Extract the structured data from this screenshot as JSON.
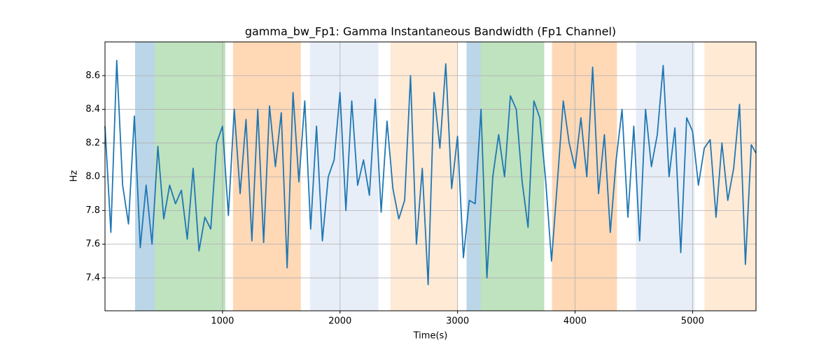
{
  "chart_data": {
    "type": "line",
    "title": "gamma_bw_Fp1: Gamma Instantaneous Bandwidth (Fp1 Channel)",
    "x_label": "Time(s)",
    "y_label": "Hz",
    "xlim": [
      0,
      5540
    ],
    "ylim": [
      7.205,
      8.8
    ],
    "xticks": [
      1000,
      2000,
      3000,
      4000,
      5000
    ],
    "yticks": [
      7.4,
      7.6,
      7.8,
      {
        "value": 8,
        "label": "8.0"
      },
      8.2,
      8.4,
      8.6
    ],
    "grid": true,
    "regions": [
      {
        "start": 256,
        "end": 423,
        "color": "#1f77b4",
        "opacity": 0.3
      },
      {
        "start": 423,
        "end": 1024,
        "color": "#2ca02c",
        "opacity": 0.3
      },
      {
        "start": 1089,
        "end": 1667,
        "color": "#ff7f0e",
        "opacity": 0.3
      },
      {
        "start": 1744,
        "end": 2327,
        "color": "#aec7e8",
        "opacity": 0.3
      },
      {
        "start": 2429,
        "end": 3000,
        "color": "#ffbb78",
        "opacity": 0.3
      },
      {
        "start": 3077,
        "end": 3196,
        "color": "#1f77b4",
        "opacity": 0.3
      },
      {
        "start": 3196,
        "end": 3738,
        "color": "#2ca02c",
        "opacity": 0.3
      },
      {
        "start": 3804,
        "end": 4357,
        "color": "#ff7f0e",
        "opacity": 0.3
      },
      {
        "start": 4518,
        "end": 5018,
        "color": "#aec7e8",
        "opacity": 0.3
      },
      {
        "start": 5101,
        "end": 5540,
        "color": "#ffbb78",
        "opacity": 0.3
      }
    ],
    "series": [
      {
        "color": "#1f77b4",
        "x": [
          0,
          50,
          100,
          150,
          200,
          250,
          300,
          350,
          400,
          450,
          500,
          550,
          600,
          650,
          700,
          750,
          800,
          850,
          900,
          950,
          1000,
          1050,
          1100,
          1150,
          1200,
          1250,
          1300,
          1350,
          1400,
          1450,
          1500,
          1550,
          1600,
          1650,
          1700,
          1750,
          1800,
          1850,
          1900,
          1950,
          2000,
          2050,
          2100,
          2150,
          2200,
          2250,
          2300,
          2350,
          2400,
          2450,
          2500,
          2550,
          2600,
          2650,
          2700,
          2750,
          2800,
          2850,
          2900,
          2950,
          3000,
          3050,
          3100,
          3150,
          3200,
          3250,
          3300,
          3350,
          3400,
          3450,
          3500,
          3550,
          3600,
          3650,
          3700,
          3750,
          3800,
          3850,
          3900,
          3950,
          4000,
          4050,
          4100,
          4150,
          4200,
          4250,
          4300,
          4350,
          4400,
          4450,
          4500,
          4550,
          4600,
          4650,
          4700,
          4750,
          4800,
          4850,
          4900,
          4950,
          5000,
          5050,
          5100,
          5150,
          5200,
          5250,
          5300,
          5350,
          5400,
          5450,
          5500,
          5540
        ],
        "values": [
          8.3,
          7.67,
          8.69,
          7.95,
          7.72,
          8.36,
          7.58,
          7.95,
          7.6,
          8.18,
          7.75,
          7.95,
          7.84,
          7.92,
          7.63,
          8.05,
          7.56,
          7.76,
          7.69,
          8.2,
          8.3,
          7.77,
          8.4,
          7.9,
          8.34,
          7.62,
          8.4,
          7.61,
          8.42,
          8.06,
          8.38,
          7.46,
          8.5,
          7.97,
          8.45,
          7.69,
          8.3,
          7.62,
          8.0,
          8.1,
          8.5,
          7.8,
          8.45,
          7.95,
          8.1,
          7.89,
          8.46,
          7.79,
          8.33,
          7.93,
          7.75,
          7.86,
          8.6,
          7.6,
          8.05,
          7.36,
          8.5,
          8.17,
          8.67,
          7.93,
          8.24,
          7.52,
          7.86,
          7.84,
          8.4,
          7.4,
          8.0,
          8.25,
          8.0,
          8.48,
          8.4,
          7.97,
          7.7,
          8.45,
          8.35,
          7.98,
          7.5,
          7.97,
          8.45,
          8.2,
          8.05,
          8.35,
          8.0,
          8.65,
          7.9,
          8.25,
          7.67,
          8.1,
          8.4,
          7.76,
          8.3,
          7.62,
          8.4,
          8.06,
          8.25,
          8.66,
          8.0,
          8.29,
          7.55,
          8.35,
          8.27,
          7.95,
          8.17,
          8.22,
          7.76,
          8.2,
          7.86,
          8.05,
          8.43,
          7.48,
          8.19,
          8.14
        ]
      }
    ]
  }
}
